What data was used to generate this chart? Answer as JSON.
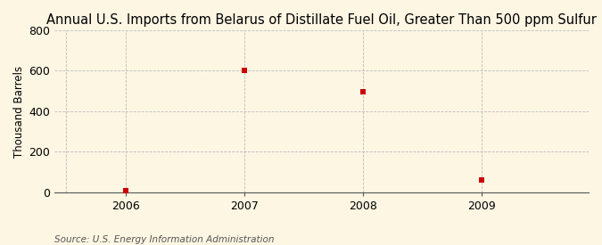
{
  "title": "Annual U.S. Imports from Belarus of Distillate Fuel Oil, Greater Than 500 ppm Sulfur",
  "ylabel": "Thousand Barrels",
  "source": "Source: U.S. Energy Information Administration",
  "x": [
    2006,
    2007,
    2008,
    2009
  ],
  "y": [
    10,
    601,
    497,
    63
  ],
  "xlim": [
    2005.4,
    2009.9
  ],
  "ylim": [
    0,
    800
  ],
  "yticks": [
    0,
    200,
    400,
    600,
    800
  ],
  "xticks": [
    2006,
    2007,
    2008,
    2009
  ],
  "marker_color": "#cc0000",
  "marker": "s",
  "marker_size": 4,
  "bg_color": "#fdf6e3",
  "grid_color": "#bbbbbb",
  "title_fontsize": 10.5,
  "label_fontsize": 8.5,
  "tick_fontsize": 9,
  "source_fontsize": 7.5
}
